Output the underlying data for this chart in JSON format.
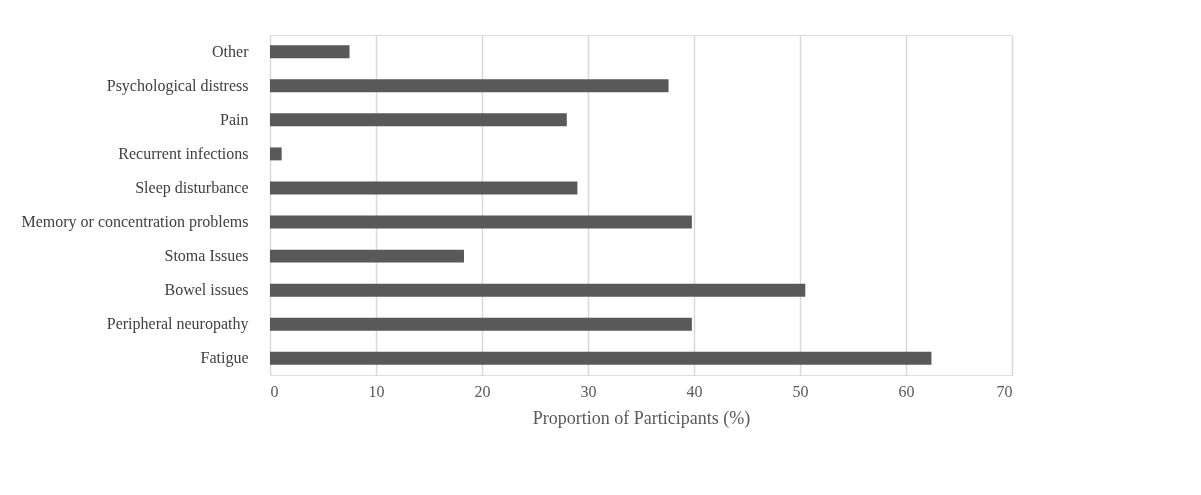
{
  "chart_data": {
    "type": "bar",
    "orientation": "horizontal",
    "xlabel": "Proportion of Participants (%)",
    "categories": [
      "Other",
      "Psychological distress",
      "Pain",
      "Recurrent infections",
      "Sleep disturbance",
      "Memory or concentration problems",
      "Stoma Issues",
      "Bowel issues",
      "Peripheral neuropathy",
      "Fatigue"
    ],
    "values": [
      7.5,
      37.6,
      28.0,
      1.1,
      29.0,
      39.8,
      18.3,
      50.5,
      39.8,
      62.4
    ],
    "color": "#595959",
    "xlim": [
      0,
      70
    ],
    "xticks": [
      0,
      10,
      20,
      30,
      40,
      50,
      60,
      70
    ],
    "grid": "x"
  }
}
